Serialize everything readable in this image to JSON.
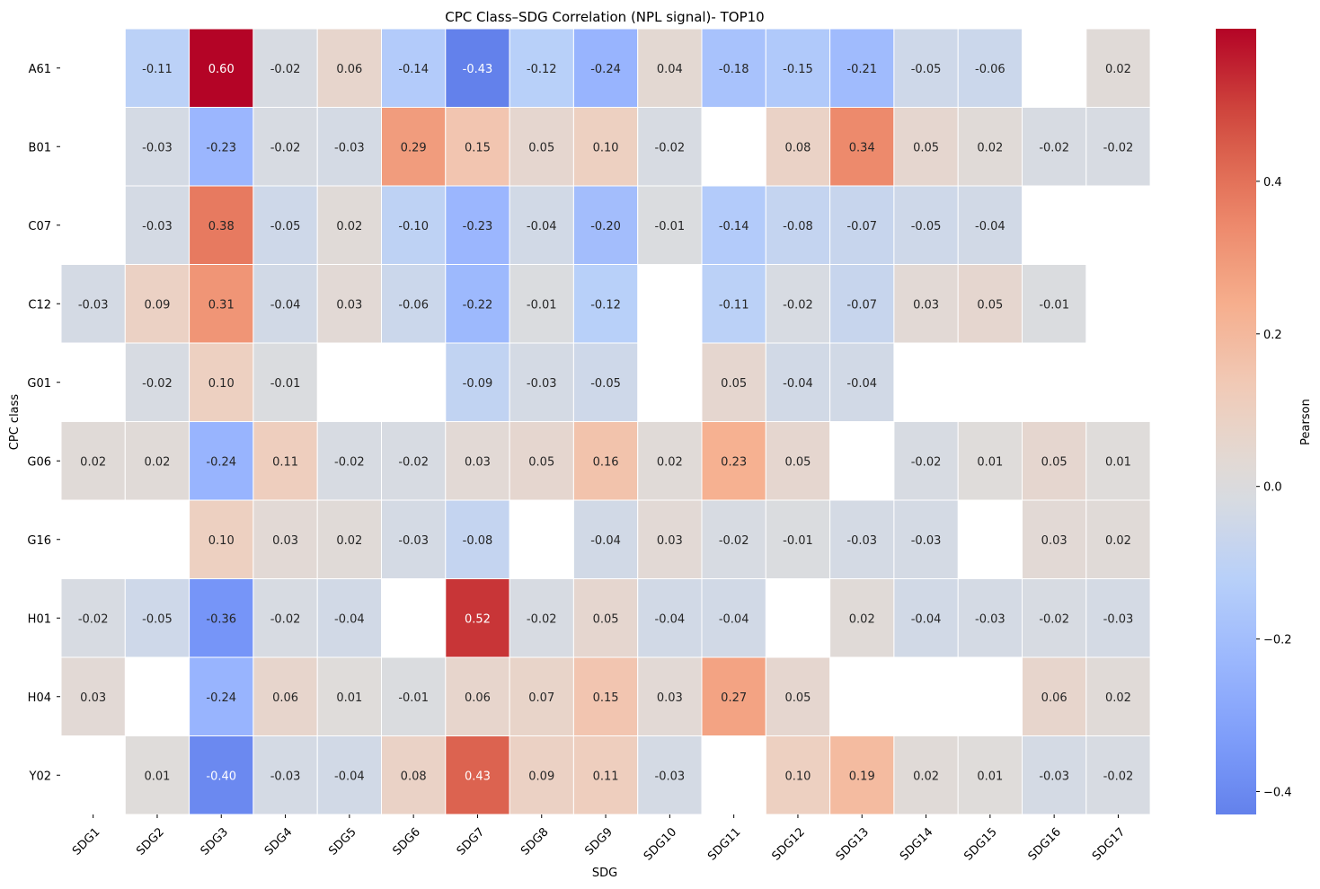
{
  "chart_data": {
    "type": "heatmap",
    "title": "CPC Class–SDG Correlation (NPL signal)- TOP10",
    "xlabel": "SDG",
    "ylabel": "CPC class",
    "colorbar_label": "Pearson",
    "colormap": "coolwarm",
    "vmin": -0.43,
    "vmax": 0.6,
    "colorbar_ticks": [
      -0.4,
      -0.2,
      0.0,
      0.2,
      0.4
    ],
    "colorbar_tick_labels": [
      "−0.4",
      "−0.2",
      "0.0",
      "0.2",
      "0.4"
    ],
    "columns": [
      "SDG1",
      "SDG2",
      "SDG3",
      "SDG4",
      "SDG5",
      "SDG6",
      "SDG7",
      "SDG8",
      "SDG9",
      "SDG10",
      "SDG11",
      "SDG12",
      "SDG13",
      "SDG14",
      "SDG15",
      "SDG16",
      "SDG17"
    ],
    "rows": [
      "A61",
      "B01",
      "C07",
      "C12",
      "G01",
      "G06",
      "G16",
      "H01",
      "H04",
      "Y02"
    ],
    "values": [
      [
        null,
        -0.11,
        0.6,
        -0.02,
        0.06,
        -0.14,
        -0.43,
        -0.12,
        -0.24,
        0.04,
        -0.18,
        -0.15,
        -0.21,
        -0.05,
        -0.06,
        null,
        0.02
      ],
      [
        null,
        -0.03,
        -0.23,
        -0.02,
        -0.03,
        0.29,
        0.15,
        0.05,
        0.1,
        -0.02,
        null,
        0.08,
        0.34,
        0.05,
        0.02,
        -0.02,
        -0.02
      ],
      [
        null,
        -0.03,
        0.38,
        -0.05,
        0.02,
        -0.1,
        -0.23,
        -0.04,
        -0.2,
        -0.01,
        -0.14,
        -0.08,
        -0.07,
        -0.05,
        -0.04,
        null,
        null
      ],
      [
        -0.03,
        0.09,
        0.31,
        -0.04,
        0.03,
        -0.06,
        -0.22,
        -0.01,
        -0.12,
        null,
        -0.11,
        -0.02,
        -0.07,
        0.03,
        0.05,
        -0.01,
        null
      ],
      [
        null,
        -0.02,
        0.1,
        -0.01,
        null,
        null,
        -0.09,
        -0.03,
        -0.05,
        null,
        0.05,
        -0.04,
        -0.04,
        null,
        null,
        null,
        null
      ],
      [
        0.02,
        0.02,
        -0.24,
        0.11,
        -0.02,
        -0.02,
        0.03,
        0.05,
        0.16,
        0.02,
        0.23,
        0.05,
        null,
        -0.02,
        0.01,
        0.05,
        0.01
      ],
      [
        null,
        null,
        0.1,
        0.03,
        0.02,
        -0.03,
        -0.08,
        null,
        -0.04,
        0.03,
        -0.02,
        -0.01,
        -0.03,
        -0.03,
        null,
        0.03,
        0.02
      ],
      [
        -0.02,
        -0.05,
        -0.36,
        -0.02,
        -0.04,
        null,
        0.52,
        -0.02,
        0.05,
        -0.04,
        -0.04,
        null,
        0.02,
        -0.04,
        -0.03,
        -0.02,
        -0.03
      ],
      [
        0.03,
        null,
        -0.24,
        0.06,
        0.01,
        -0.01,
        0.06,
        0.07,
        0.15,
        0.03,
        0.27,
        0.05,
        null,
        null,
        null,
        0.06,
        0.02
      ],
      [
        null,
        0.01,
        -0.4,
        -0.03,
        -0.04,
        0.08,
        0.43,
        0.09,
        0.11,
        -0.03,
        null,
        0.1,
        0.19,
        0.02,
        0.01,
        -0.03,
        -0.02
      ]
    ]
  }
}
